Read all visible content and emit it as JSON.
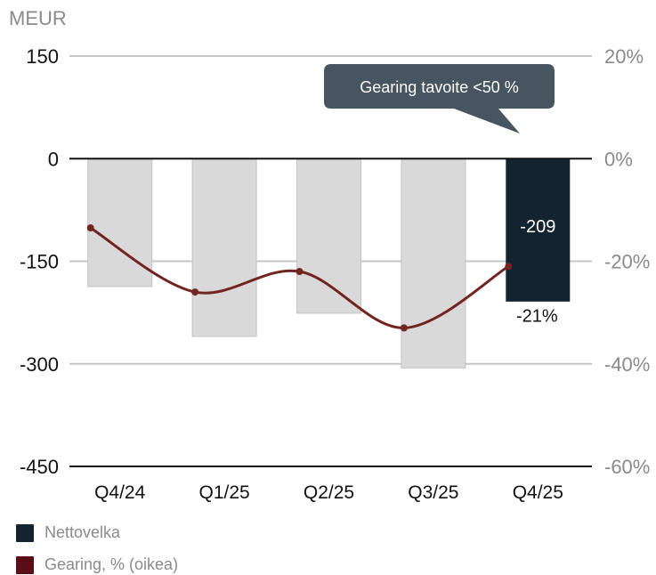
{
  "chart_data": {
    "type": "bar",
    "unit_label": "MEUR",
    "categories": [
      "Q4/24",
      "Q1/25",
      "Q2/25",
      "Q3/25",
      "Q4/25"
    ],
    "left_axis": {
      "ylim": [
        -450,
        150
      ],
      "ticks": [
        "150",
        "0",
        "-150",
        "-300",
        "-450"
      ],
      "tick_values": [
        150,
        0,
        -150,
        -300,
        -450
      ]
    },
    "right_axis": {
      "ylim": [
        -60,
        20
      ],
      "ticks": [
        "20%",
        "0%",
        "-20%",
        "-40%",
        "-60%"
      ],
      "tick_values": [
        20,
        0,
        -20,
        -40,
        -60
      ]
    },
    "series": [
      {
        "name": "Nettovelka",
        "kind": "bar",
        "axis": "left",
        "values": [
          -187,
          -260,
          -226,
          -306,
          -209
        ],
        "colors": [
          "#d9d9d9",
          "#d9d9d9",
          "#d9d9d9",
          "#d9d9d9",
          "#13232f"
        ]
      },
      {
        "name": "Gearing, % (oikea)",
        "kind": "line",
        "axis": "right",
        "values": [
          -13.5,
          -26,
          -22,
          -33,
          -21
        ],
        "color": "#722421"
      }
    ],
    "data_labels": {
      "bar_last": "-209",
      "line_last": "-21%"
    },
    "annotation": "Gearing tavoite  <50 %",
    "legend": [
      {
        "label": "Nettovelka",
        "color": "#13232f"
      },
      {
        "label": "Gearing, % (oikea)",
        "color": "#5a0d16"
      }
    ],
    "legend_position": "bottom-left",
    "grid": true
  }
}
